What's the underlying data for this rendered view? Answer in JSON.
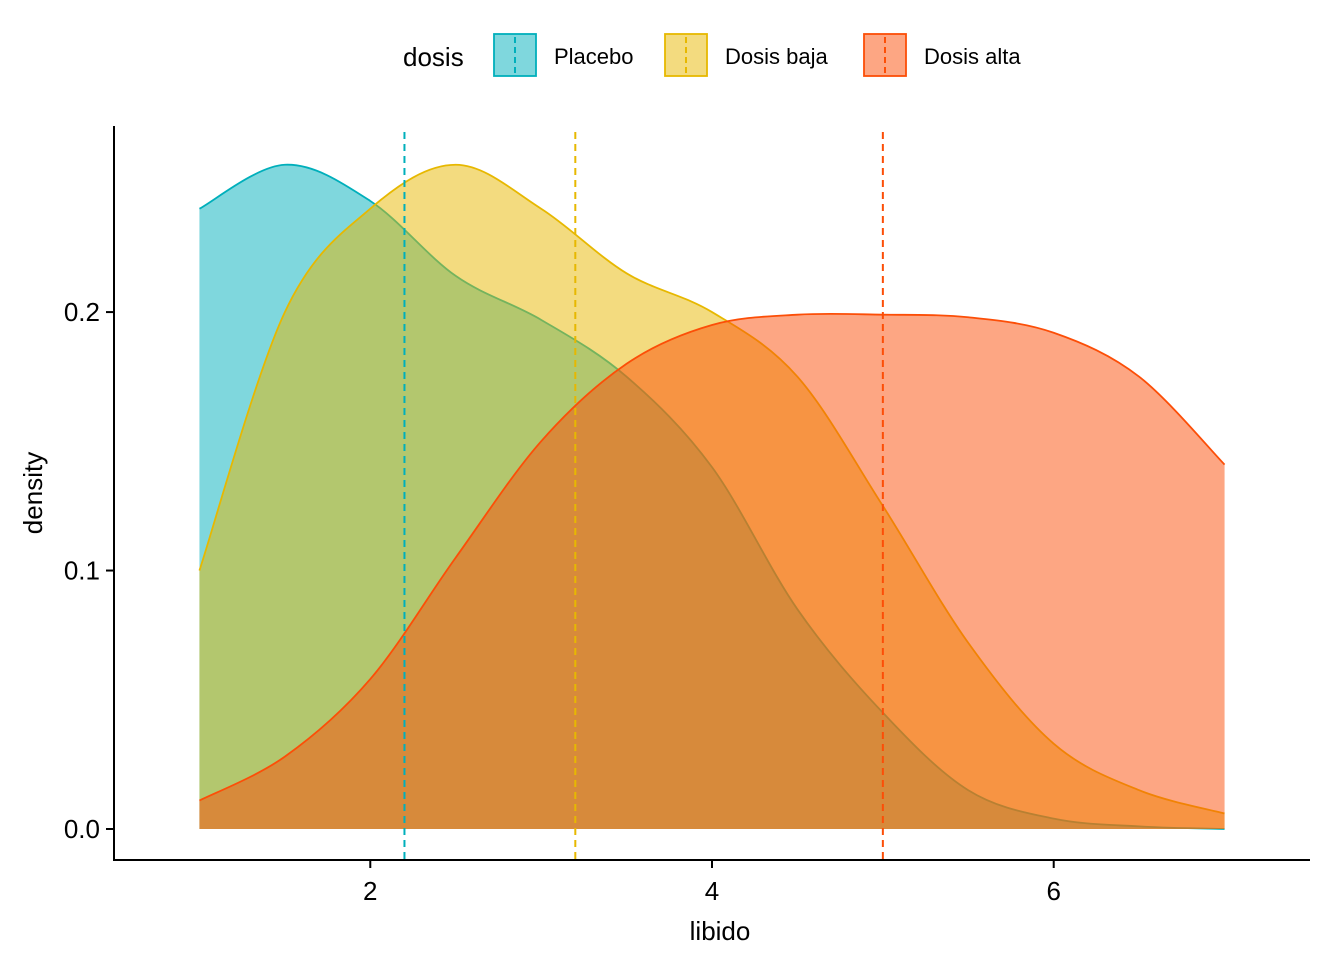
{
  "chart_data": {
    "type": "area",
    "title": "",
    "xlabel": "libido",
    "ylabel": "density",
    "xlim": [
      0.5,
      7.5
    ],
    "ylim": [
      -0.012,
      0.272
    ],
    "x_ticks": [
      2,
      4,
      6
    ],
    "x_tick_labels": [
      "2",
      "4",
      "6"
    ],
    "y_ticks": [
      0.0,
      0.1,
      0.2
    ],
    "y_tick_labels": [
      "0.0",
      "0.1",
      "0.2"
    ],
    "grid": false,
    "legend": {
      "title": "dosis",
      "position": "top"
    },
    "x": [
      1.0,
      1.5,
      2.0,
      2.5,
      3.0,
      3.5,
      4.0,
      4.5,
      5.0,
      5.5,
      6.0,
      6.5,
      7.0
    ],
    "series": [
      {
        "name": "Placebo",
        "fill": "#00AFBB",
        "line": "#00AFBB",
        "mean": 2.2,
        "values": [
          0.24,
          0.257,
          0.243,
          0.214,
          0.197,
          0.175,
          0.14,
          0.085,
          0.045,
          0.015,
          0.004,
          0.001,
          0.0
        ]
      },
      {
        "name": "Dosis baja",
        "fill": "#E7B800",
        "line": "#E7B800",
        "mean": 3.2,
        "values": [
          0.1,
          0.2,
          0.24,
          0.257,
          0.24,
          0.215,
          0.2,
          0.175,
          0.125,
          0.072,
          0.033,
          0.015,
          0.006
        ]
      },
      {
        "name": "Dosis alta",
        "fill": "#FC4E07",
        "line": "#FC4E07",
        "mean": 5.0,
        "values": [
          0.011,
          0.028,
          0.058,
          0.105,
          0.15,
          0.18,
          0.195,
          0.199,
          0.199,
          0.198,
          0.192,
          0.175,
          0.141
        ]
      }
    ]
  }
}
